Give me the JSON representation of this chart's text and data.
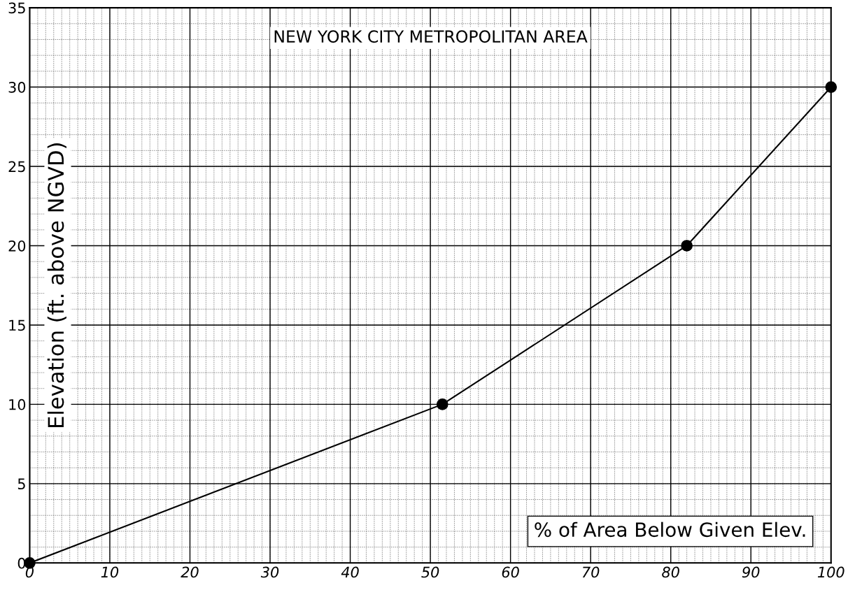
{
  "chart_data": {
    "type": "line",
    "title": "NEW YORK CITY METROPOLITAN AREA",
    "xlabel": "% of Area Below Given Elev.",
    "ylabel": "Elevation (ft. above NGVD)",
    "x": [
      0,
      51.5,
      82,
      100
    ],
    "series": [
      {
        "color": "#000000",
        "values": [
          0,
          10,
          20,
          30
        ]
      }
    ],
    "marker": "circle",
    "line_style": "solid",
    "xlim": [
      0,
      100
    ],
    "ylim": [
      0,
      35
    ],
    "xticks": [
      0,
      10,
      20,
      30,
      40,
      50,
      60,
      70,
      80,
      90,
      100
    ],
    "yticks": [
      0,
      5,
      10,
      15,
      20,
      25,
      30,
      35
    ],
    "grid": true
  }
}
